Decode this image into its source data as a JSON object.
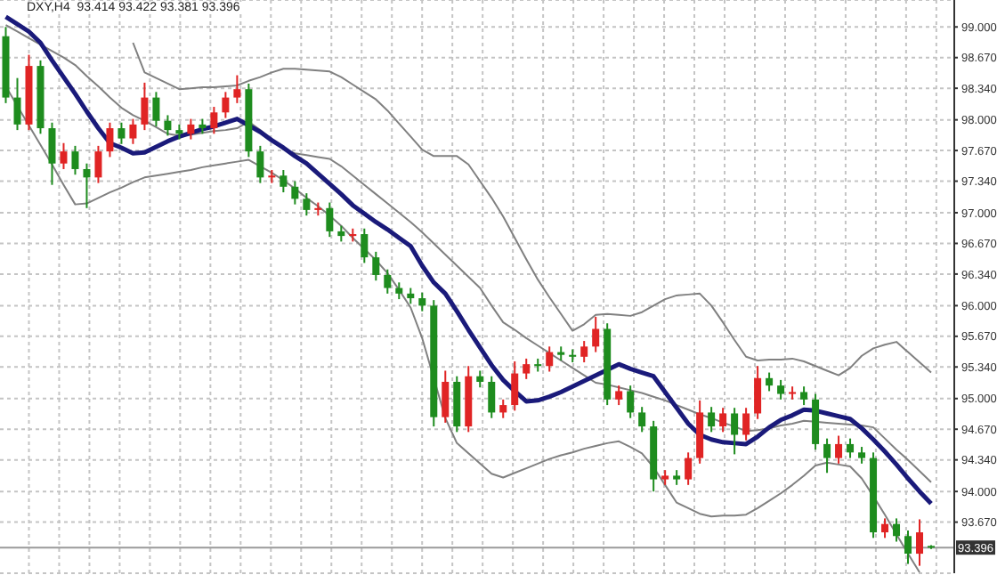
{
  "chart_data": {
    "type": "candlestick",
    "title": "DXY,H4  93.414 93.422 93.381 93.396",
    "categories": [
      null,
      null,
      null,
      null,
      null,
      null,
      null,
      null,
      null,
      null,
      null,
      null,
      null,
      null,
      null,
      null,
      null,
      null,
      null,
      null,
      null,
      null,
      null,
      null,
      null,
      null,
      null,
      null,
      null,
      null,
      null,
      null,
      null,
      null,
      null,
      null,
      null,
      null,
      null,
      null,
      null,
      null,
      null,
      null,
      null,
      null,
      null,
      null,
      null,
      null,
      null,
      null,
      null,
      null,
      null,
      null,
      null,
      null,
      null,
      null,
      null,
      null,
      null,
      null,
      null,
      null,
      null,
      null,
      null,
      null,
      null,
      null,
      null,
      null,
      null,
      null,
      null,
      null,
      null,
      null,
      null
    ],
    "ohlc": [
      [
        98.9,
        99.0,
        98.18,
        98.24
      ],
      [
        98.24,
        98.45,
        97.89,
        97.95
      ],
      [
        97.95,
        98.7,
        97.89,
        98.58
      ],
      [
        98.58,
        98.64,
        97.85,
        97.91
      ],
      [
        97.91,
        97.97,
        97.3,
        97.53
      ],
      [
        97.53,
        97.75,
        97.47,
        97.66
      ],
      [
        97.66,
        97.72,
        97.41,
        97.47
      ],
      [
        97.47,
        97.53,
        97.05,
        97.38
      ],
      [
        97.38,
        97.72,
        97.32,
        97.66
      ],
      [
        97.66,
        97.97,
        97.6,
        97.91
      ],
      [
        97.91,
        97.97,
        97.74,
        97.8
      ],
      [
        97.8,
        98.01,
        97.74,
        97.95
      ],
      [
        97.95,
        98.4,
        97.89,
        98.24
      ],
      [
        98.24,
        98.3,
        97.93,
        97.99
      ],
      [
        97.99,
        98.05,
        97.83,
        97.89
      ],
      [
        97.89,
        97.95,
        97.79,
        97.85
      ],
      [
        97.85,
        98.01,
        97.79,
        97.95
      ],
      [
        97.95,
        98.01,
        97.85,
        97.91
      ],
      [
        97.91,
        98.14,
        97.85,
        98.08
      ],
      [
        98.08,
        98.3,
        98.02,
        98.24
      ],
      [
        98.24,
        98.48,
        98.18,
        98.33
      ],
      [
        98.33,
        98.39,
        97.6,
        97.66
      ],
      [
        97.66,
        97.72,
        97.32,
        97.38
      ],
      [
        97.38,
        97.46,
        97.32,
        97.4
      ],
      [
        97.4,
        97.46,
        97.22,
        97.28
      ],
      [
        97.28,
        97.34,
        97.09,
        97.15
      ],
      [
        97.15,
        97.21,
        96.97,
        97.03
      ],
      [
        97.03,
        97.11,
        96.97,
        97.05
      ],
      [
        97.05,
        97.11,
        96.74,
        96.8
      ],
      [
        96.8,
        96.86,
        96.69,
        96.75
      ],
      [
        96.75,
        96.83,
        96.69,
        96.77
      ],
      [
        96.77,
        96.83,
        96.46,
        96.52
      ],
      [
        96.52,
        96.58,
        96.27,
        96.33
      ],
      [
        96.33,
        96.39,
        96.13,
        96.19
      ],
      [
        96.19,
        96.25,
        96.07,
        96.13
      ],
      [
        96.13,
        96.19,
        96.02,
        96.08
      ],
      [
        96.08,
        96.14,
        95.94,
        96.0
      ],
      [
        96.0,
        96.06,
        94.7,
        94.8
      ],
      [
        94.8,
        95.3,
        94.74,
        95.18
      ],
      [
        95.18,
        95.24,
        94.64,
        94.7
      ],
      [
        94.7,
        95.35,
        94.64,
        95.24
      ],
      [
        95.24,
        95.3,
        95.12,
        95.18
      ],
      [
        95.18,
        95.24,
        94.79,
        94.85
      ],
      [
        94.85,
        94.99,
        94.79,
        94.93
      ],
      [
        94.93,
        95.4,
        94.87,
        95.27
      ],
      [
        95.27,
        95.43,
        95.21,
        95.37
      ],
      [
        95.37,
        95.43,
        95.29,
        95.35
      ],
      [
        95.35,
        95.56,
        95.29,
        95.5
      ],
      [
        95.5,
        95.56,
        95.41,
        95.47
      ],
      [
        95.47,
        95.53,
        95.39,
        95.45
      ],
      [
        95.45,
        95.62,
        95.39,
        95.56
      ],
      [
        95.56,
        95.88,
        95.5,
        95.75
      ],
      [
        95.75,
        95.81,
        94.93,
        94.99
      ],
      [
        94.99,
        95.14,
        94.93,
        95.08
      ],
      [
        95.08,
        95.14,
        94.79,
        94.85
      ],
      [
        94.85,
        94.91,
        94.64,
        94.7
      ],
      [
        94.7,
        94.76,
        94.0,
        94.13
      ],
      [
        94.13,
        94.23,
        94.07,
        94.17
      ],
      [
        94.17,
        94.23,
        94.07,
        94.13
      ],
      [
        94.13,
        94.42,
        94.07,
        94.36
      ],
      [
        94.36,
        94.98,
        94.3,
        94.85
      ],
      [
        94.85,
        94.91,
        94.64,
        94.7
      ],
      [
        94.7,
        94.9,
        94.64,
        94.84
      ],
      [
        94.84,
        94.9,
        94.4,
        94.61
      ],
      [
        94.61,
        94.9,
        94.55,
        94.84
      ],
      [
        94.84,
        95.35,
        94.78,
        95.22
      ],
      [
        95.22,
        95.28,
        95.08,
        95.14
      ],
      [
        95.14,
        95.2,
        94.99,
        95.05
      ],
      [
        95.05,
        95.13,
        94.99,
        95.07
      ],
      [
        95.07,
        95.13,
        94.93,
        94.99
      ],
      [
        94.99,
        95.05,
        94.45,
        94.51
      ],
      [
        94.51,
        94.57,
        94.2,
        94.36
      ],
      [
        94.36,
        94.6,
        94.3,
        94.51
      ],
      [
        94.51,
        94.57,
        94.36,
        94.42
      ],
      [
        94.42,
        94.48,
        94.3,
        94.36
      ],
      [
        94.36,
        94.42,
        93.5,
        93.56
      ],
      [
        93.56,
        93.71,
        93.5,
        93.65
      ],
      [
        93.65,
        93.71,
        93.46,
        93.52
      ],
      [
        93.52,
        93.58,
        93.22,
        93.33
      ],
      [
        93.33,
        93.7,
        93.2,
        93.56
      ],
      [
        93.414,
        93.422,
        93.381,
        93.396
      ]
    ],
    "colors": [
      "#1e8c1e",
      "#1e8c1e",
      "#e02424",
      "#1e8c1e",
      "#1e8c1e",
      "#e02424",
      "#1e8c1e",
      "#1e8c1e",
      "#e02424",
      "#e02424",
      "#1e8c1e",
      "#e02424",
      "#e02424",
      "#1e8c1e",
      "#1e8c1e",
      "#1e8c1e",
      "#e02424",
      "#1e8c1e",
      "#e02424",
      "#e02424",
      "#e02424",
      "#1e8c1e",
      "#1e8c1e",
      "#e02424",
      "#1e8c1e",
      "#1e8c1e",
      "#1e8c1e",
      "#e02424",
      "#1e8c1e",
      "#1e8c1e",
      "#e02424",
      "#1e8c1e",
      "#1e8c1e",
      "#1e8c1e",
      "#1e8c1e",
      "#1e8c1e",
      "#1e8c1e",
      "#1e8c1e",
      "#e02424",
      "#1e8c1e",
      "#e02424",
      "#1e8c1e",
      "#1e8c1e",
      "#e02424",
      "#e02424",
      "#e02424",
      "#1e8c1e",
      "#e02424",
      "#1e8c1e",
      "#1e8c1e",
      "#e02424",
      "#e02424",
      "#1e8c1e",
      "#e02424",
      "#1e8c1e",
      "#1e8c1e",
      "#1e8c1e",
      "#e02424",
      "#1e8c1e",
      "#e02424",
      "#e02424",
      "#1e8c1e",
      "#e02424",
      "#1e8c1e",
      "#e02424",
      "#e02424",
      "#1e8c1e",
      "#1e8c1e",
      "#e02424",
      "#1e8c1e",
      "#1e8c1e",
      "#1e8c1e",
      "#e02424",
      "#1e8c1e",
      "#1e8c1e",
      "#1e8c1e",
      "#e02424",
      "#1e8c1e",
      "#1e8c1e",
      "#e02424",
      "#1e8c1e"
    ],
    "series": [
      {
        "type": "line",
        "color": "#808080",
        "values": [
          null,
          null,
          null,
          null,
          null,
          null,
          null,
          null,
          null,
          null,
          null,
          98.83,
          98.51,
          98.45,
          98.39,
          98.33,
          98.34,
          98.35,
          98.35,
          98.36,
          98.37,
          98.42,
          98.46,
          98.51,
          98.55,
          98.55,
          98.54,
          98.53,
          98.52,
          98.46,
          98.38,
          98.3,
          98.22,
          98.1,
          97.96,
          97.82,
          97.68,
          97.61,
          97.61,
          97.61,
          97.52,
          97.34,
          97.16,
          96.96,
          96.73,
          96.5,
          96.28,
          96.09,
          95.91,
          95.73,
          95.8,
          95.9,
          95.91,
          95.9,
          95.89,
          95.93,
          96.0,
          96.07,
          96.11,
          96.12,
          96.13,
          96.0,
          95.82,
          95.63,
          95.45,
          95.41,
          95.42,
          95.42,
          95.43,
          95.4,
          95.35,
          95.3,
          95.25,
          95.33,
          95.46,
          95.54,
          95.58,
          95.61,
          95.5,
          95.39,
          95.28
        ]
      },
      {
        "type": "line",
        "color": "#808080",
        "values": [
          99.02,
          98.95,
          98.88,
          98.81,
          98.74,
          98.67,
          98.59,
          98.47,
          98.36,
          98.24,
          98.13,
          98.05,
          97.99,
          97.92,
          97.85,
          97.83,
          97.84,
          97.86,
          97.88,
          97.89,
          97.91,
          97.98,
          97.89,
          97.79,
          97.68,
          97.64,
          97.62,
          97.6,
          97.58,
          97.5,
          97.4,
          97.3,
          97.2,
          97.1,
          97.0,
          96.9,
          96.79,
          96.67,
          96.55,
          96.43,
          96.31,
          96.19,
          96.0,
          95.82,
          95.74,
          95.65,
          95.57,
          95.49,
          95.41,
          95.33,
          95.25,
          95.17,
          95.15,
          95.12,
          95.09,
          95.06,
          95.02,
          94.98,
          94.93,
          94.88,
          94.83,
          94.79,
          94.74,
          94.7,
          94.65,
          94.66,
          94.68,
          94.71,
          94.73,
          94.76,
          94.75,
          94.74,
          94.73,
          94.72,
          94.71,
          94.69,
          94.57,
          94.45,
          94.34,
          94.22,
          94.1
        ]
      },
      {
        "type": "line",
        "color": "#808080",
        "values": [
          98.36,
          98.15,
          97.94,
          97.73,
          97.52,
          97.3,
          97.09,
          97.1,
          97.16,
          97.22,
          97.27,
          97.33,
          97.38,
          97.4,
          97.42,
          97.44,
          97.46,
          97.49,
          97.51,
          97.53,
          97.55,
          97.57,
          97.5,
          97.43,
          97.35,
          97.26,
          97.16,
          97.07,
          96.97,
          96.86,
          96.73,
          96.61,
          96.49,
          96.35,
          96.17,
          95.98,
          95.65,
          95.22,
          94.79,
          94.52,
          94.41,
          94.3,
          94.19,
          94.15,
          94.2,
          94.25,
          94.3,
          94.35,
          94.39,
          94.42,
          94.46,
          94.49,
          94.52,
          94.54,
          94.48,
          94.41,
          94.26,
          94.07,
          93.88,
          93.82,
          93.76,
          93.73,
          93.74,
          93.74,
          93.75,
          93.82,
          93.9,
          93.98,
          94.07,
          94.17,
          94.28,
          94.31,
          94.29,
          94.27,
          94.14,
          93.95,
          93.75,
          93.54,
          93.33,
          93.13,
          null
        ]
      },
      {
        "type": "line",
        "color": "#1a1a7a",
        "values": [
          99.11,
          99.03,
          98.95,
          98.83,
          98.64,
          98.46,
          98.28,
          98.09,
          97.91,
          97.75,
          97.7,
          97.64,
          97.65,
          97.71,
          97.77,
          97.82,
          97.86,
          97.9,
          97.93,
          97.97,
          98.01,
          97.94,
          97.87,
          97.78,
          97.7,
          97.61,
          97.53,
          97.42,
          97.31,
          97.2,
          97.08,
          96.99,
          96.9,
          96.82,
          96.73,
          96.64,
          96.43,
          96.25,
          96.13,
          95.94,
          95.74,
          95.55,
          95.36,
          95.2,
          95.08,
          94.97,
          94.98,
          95.02,
          95.07,
          95.13,
          95.19,
          95.25,
          95.31,
          95.37,
          95.32,
          95.28,
          95.24,
          95.07,
          94.9,
          94.73,
          94.61,
          94.56,
          94.53,
          94.52,
          94.51,
          94.59,
          94.69,
          94.77,
          94.82,
          94.88,
          94.87,
          94.84,
          94.81,
          94.78,
          94.68,
          94.56,
          94.43,
          94.29,
          94.14,
          94.0,
          93.87
        ]
      }
    ],
    "ylim": [
      93.12,
      99.29
    ],
    "yticks": [
      {
        "value": 99,
        "label": "99.000"
      },
      {
        "value": 98.67,
        "label": "98.670"
      },
      {
        "value": 98.34,
        "label": "98.340"
      },
      {
        "value": 98,
        "label": "98.000"
      },
      {
        "value": 97.67,
        "label": "97.670"
      },
      {
        "value": 97.34,
        "label": "97.340"
      },
      {
        "value": 97,
        "label": "97.000"
      },
      {
        "value": 96.67,
        "label": "96.670"
      },
      {
        "value": 96.34,
        "label": "96.340"
      },
      {
        "value": 96,
        "label": "96.000"
      },
      {
        "value": 95.67,
        "label": "95.670"
      },
      {
        "value": 95.34,
        "label": "95.340"
      },
      {
        "value": 95,
        "label": "95.000"
      },
      {
        "value": 94.67,
        "label": "94.670"
      },
      {
        "value": 94.34,
        "label": "94.340"
      },
      {
        "value": 94,
        "label": "94.000"
      },
      {
        "value": 93.67,
        "label": "93.670"
      }
    ],
    "ref_lines": [
      {
        "axis": "y",
        "value": 93.396,
        "label": "93.396",
        "color": "#9a9a9a"
      }
    ],
    "grid": true,
    "tick_labels": "y"
  }
}
